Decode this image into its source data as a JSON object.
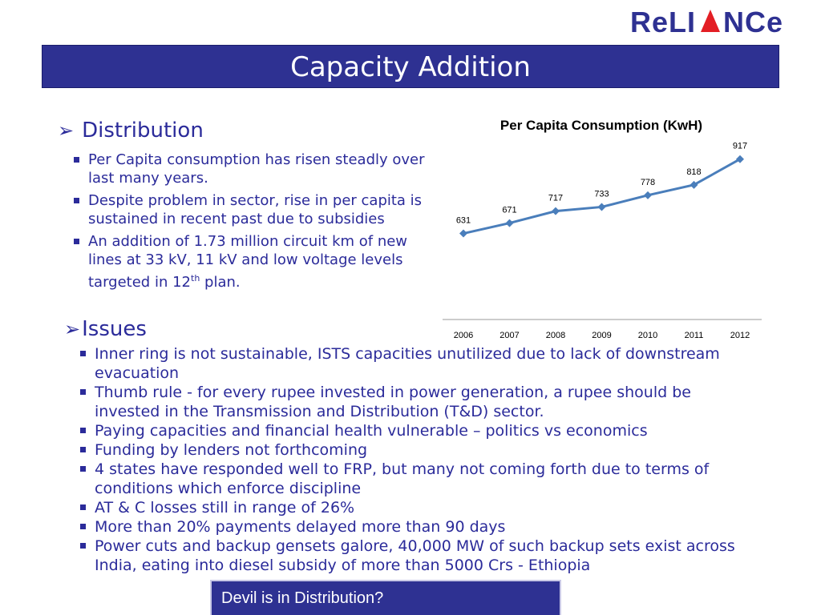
{
  "logo": {
    "text": "RELIANCE"
  },
  "header": {
    "title": "Capacity Addition"
  },
  "distribution": {
    "heading": "Distribution",
    "bullets": [
      "Per Capita consumption has risen steadly over last many years.",
      "Despite problem  in sector, rise in per capita is sustained in recent past due to subsidies"
    ],
    "bullet3_pre": "An addition of 1.73 million circuit km of new lines at 33 kV, 11 kV and low voltage levels targeted in 12",
    "bullet3_sup": "th",
    "bullet3_post": " plan."
  },
  "issues": {
    "heading": "Issues",
    "bullets": [
      "Inner ring is not sustainable, ISTS capacities unutilized due to lack of downstream evacuation",
      "Thumb rule - for every rupee invested in power generation, a rupee should be invested in the Transmission and Distribution (T&D) sector.",
      "Paying capacities and financial health vulnerable – politics vs economics",
      "Funding by lenders not forthcoming",
      "4 states have responded well to FRP, but many not coming forth due to  terms of conditions which enforce discipline",
      "AT & C losses still in range of 26%",
      "More than 20% payments delayed more than 90 days",
      "Power cuts and backup gensets galore, 40,000 MW of such backup sets exist across India, eating into diesel subsidy of more than 5000 Crs - Ethiopia"
    ]
  },
  "footer": {
    "text": "Devil is in Distribution?"
  },
  "colors": {
    "accent": "#2e3192",
    "line": "#4a7ebb"
  },
  "chart_data": {
    "type": "line",
    "title": "Per Capita Consumption (KwH)",
    "categories": [
      "2006",
      "2007",
      "2008",
      "2009",
      "2010",
      "2011",
      "2012"
    ],
    "values": [
      631,
      671,
      717,
      733,
      778,
      818,
      917
    ],
    "ylim": [
      300,
      950
    ],
    "grid": false,
    "legend": "none"
  }
}
